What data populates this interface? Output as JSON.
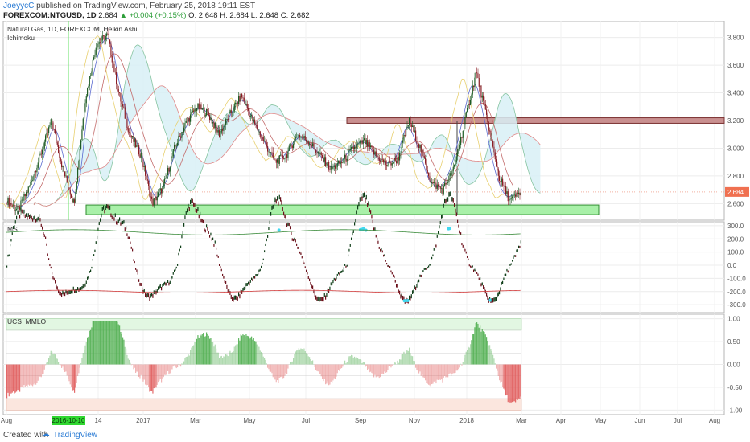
{
  "header": {
    "user": "JoeyycC",
    "published": " published on TradingView.com, February 25, 2018 19:11 EST",
    "symbol": "FOREXCOM:NTGUSD, 1D",
    "last": "2.684",
    "change": "▲ +0.004 (+0.15%)",
    "ohlc": "O: 2.648  H: 2.684  L: 2.648  C: 2.682"
  },
  "footer": {
    "created_with": "Created with",
    "brand": "TradingView"
  },
  "colors": {
    "bull": "#1f5c25",
    "bear": "#8a1e26",
    "cloud": "#d8f0f6",
    "ms_up": "#0e3d17",
    "ms_down": "#6b0f1a",
    "ms_band_top": "#3c8c3c",
    "ms_band_bottom": "#d23c3c",
    "mmlo_pos": "#4fae4f",
    "mmlo_neg": "#e05a5a",
    "zone_green": "#a8f0a8",
    "zone_red": "#c99090"
  },
  "chart_data": [
    {
      "type": "candlestick",
      "title": "Natural Gas, 1D, FOREXCOM, Heikin Ashi",
      "indicator": "Ichimoku",
      "price_label": "2.684",
      "ylim": [
        2.48,
        3.92
      ],
      "yticks": [
        "3.800",
        "3.600",
        "3.400",
        "3.200",
        "3.000",
        "2.800",
        "2.600"
      ],
      "xticks": [
        "Aug",
        "14",
        "2017",
        "Mar",
        "May",
        "Jul",
        "Sep",
        "Nov",
        "2018",
        "Mar",
        "Apr",
        "May",
        "Jun",
        "Jul",
        "Aug"
      ],
      "highlighted_x": "2016-10-10",
      "approx_close": [
        2.62,
        2.55,
        2.72,
        2.95,
        3.2,
        2.85,
        2.6,
        3.35,
        3.75,
        3.82,
        3.4,
        3.1,
        2.95,
        2.6,
        2.72,
        3.0,
        3.18,
        3.3,
        3.25,
        3.1,
        3.25,
        3.38,
        3.2,
        3.05,
        2.9,
        2.95,
        3.1,
        3.05,
        2.95,
        2.85,
        2.9,
        3.0,
        3.05,
        2.95,
        2.88,
        2.92,
        3.2,
        3.0,
        2.75,
        2.7,
        2.85,
        3.2,
        3.55,
        3.2,
        2.8,
        2.62,
        2.68
      ],
      "zones": [
        {
          "label": "support",
          "from": 2.52,
          "to": 2.59
        },
        {
          "label": "resistance",
          "from": 3.18,
          "to": 3.22
        }
      ]
    },
    {
      "type": "bar",
      "title": "MS",
      "ylim": [
        -360,
        330
      ],
      "yticks": [
        "300.0",
        "200.0",
        "100.0",
        "0.0",
        "-100.0",
        "-200.0",
        "-300.0"
      ],
      "band_top": 250,
      "band_bottom": -200
    },
    {
      "type": "bar",
      "title": "UCS_MMLO",
      "ylim": [
        -1.1,
        1.1
      ],
      "yticks": [
        "1.00",
        "0.50",
        "0.00",
        "-0.50",
        "-1.00"
      ]
    }
  ]
}
